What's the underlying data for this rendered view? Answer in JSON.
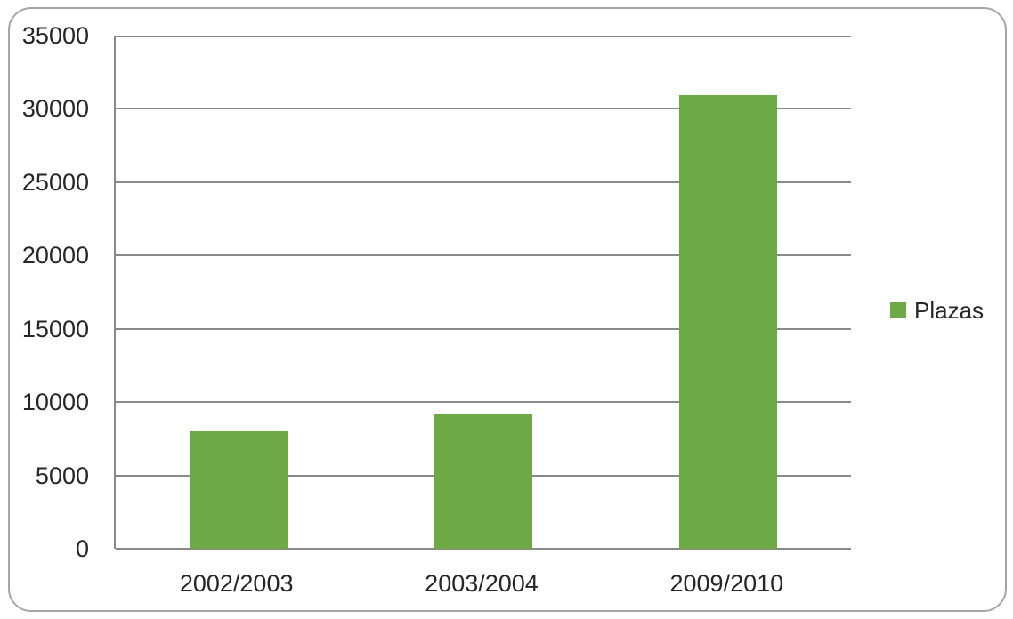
{
  "chart_data": {
    "type": "bar",
    "title": "",
    "categories": [
      "2002/2003",
      "2003/2004",
      "2009/2010"
    ],
    "series": [
      {
        "name": "Plazas",
        "values": [
          8000,
          9150,
          30950
        ]
      }
    ],
    "ylabel": "",
    "xlabel": "",
    "ylim": [
      0,
      35000
    ],
    "yticks": [
      0,
      5000,
      10000,
      15000,
      20000,
      25000,
      30000,
      35000
    ],
    "grid": true,
    "legend_position": "right"
  },
  "legend": {
    "items": [
      {
        "label": "Plazas",
        "color": "#6daa46"
      }
    ]
  },
  "colors": {
    "bar": "#6daa46",
    "gridline": "#898989",
    "axis_line": "#898989",
    "chart_border": "#a6a6a6",
    "text": "#262626",
    "background": "#ffffff"
  }
}
